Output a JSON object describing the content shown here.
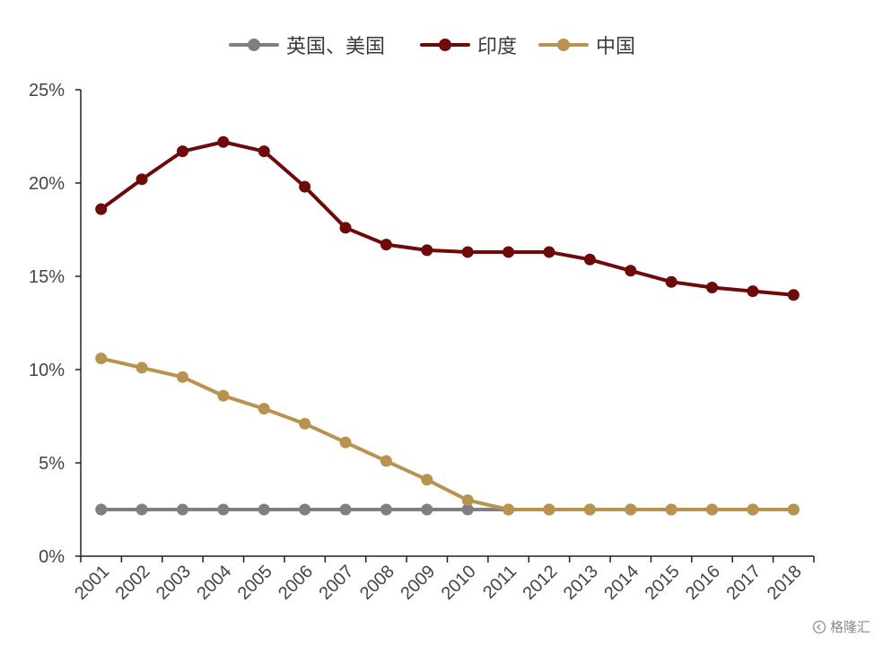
{
  "chart_data": {
    "type": "line",
    "categories": [
      "2001",
      "2002",
      "2003",
      "2004",
      "2005",
      "2006",
      "2007",
      "2008",
      "2009",
      "2010",
      "2011",
      "2012",
      "2013",
      "2014",
      "2015",
      "2016",
      "2017",
      "2018"
    ],
    "series": [
      {
        "name": "英国、美国",
        "color": "#7f7f7f",
        "values": [
          2.5,
          2.5,
          2.5,
          2.5,
          2.5,
          2.5,
          2.5,
          2.5,
          2.5,
          2.5,
          2.5,
          2.5,
          2.5,
          2.5,
          2.5,
          2.5,
          2.5,
          2.5
        ]
      },
      {
        "name": "印度",
        "color": "#6e0a0a",
        "values": [
          18.6,
          20.2,
          21.7,
          22.2,
          21.7,
          19.8,
          17.6,
          16.7,
          16.4,
          16.3,
          16.3,
          16.3,
          15.9,
          15.3,
          14.7,
          14.4,
          14.2,
          14.0
        ]
      },
      {
        "name": "中国",
        "color": "#b8924f",
        "values": [
          10.6,
          10.1,
          9.6,
          8.6,
          7.9,
          7.1,
          6.1,
          5.1,
          4.1,
          3.0,
          2.5,
          2.5,
          2.5,
          2.5,
          2.5,
          2.5,
          2.5,
          2.5
        ]
      }
    ],
    "y_ticks": [
      "0%",
      "5%",
      "10%",
      "15%",
      "20%",
      "25%"
    ],
    "ylim": [
      0,
      25
    ],
    "grid": false,
    "legend_position": "top"
  },
  "watermark": {
    "text": "格隆汇"
  }
}
